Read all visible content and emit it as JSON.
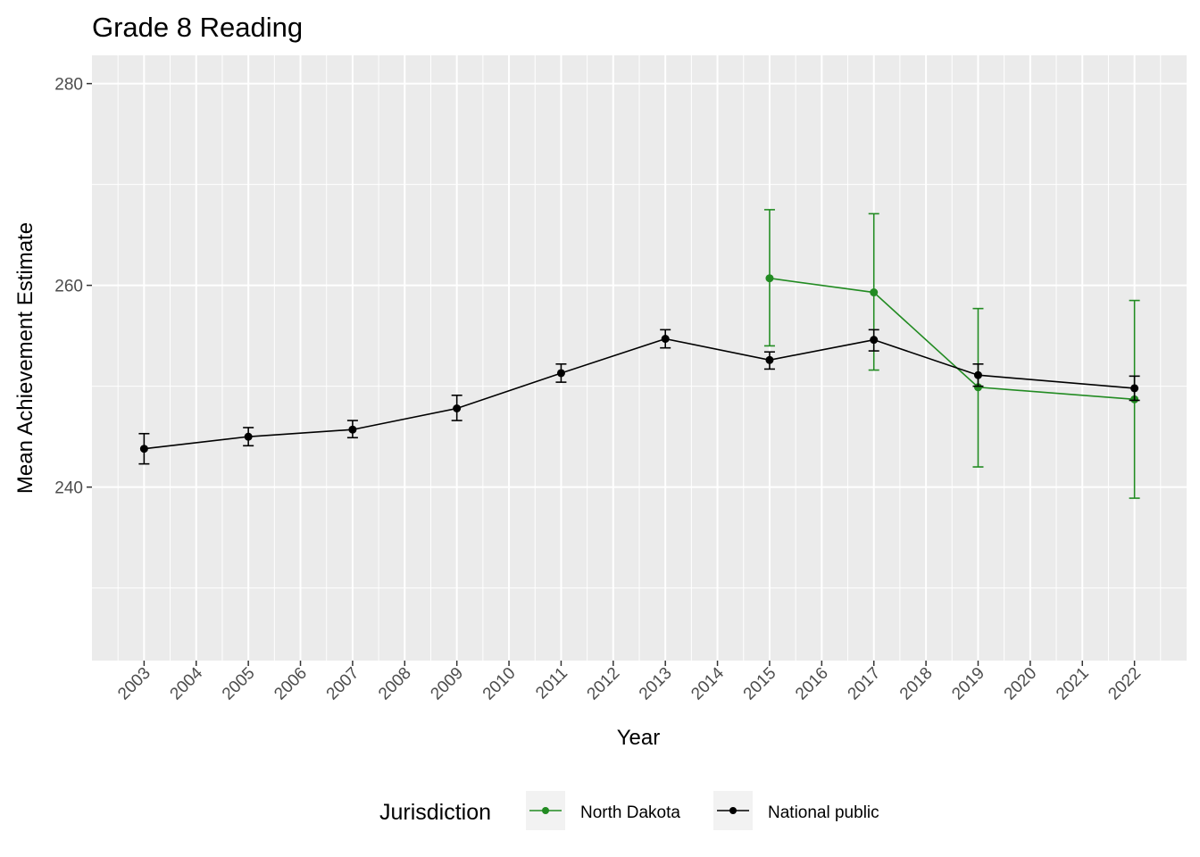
{
  "chart_data": {
    "type": "line",
    "title": "Grade 8 Reading",
    "xlabel": "Year",
    "ylabel": "Mean Achievement Estimate",
    "x_ticks": [
      "2003",
      "2004",
      "2005",
      "2006",
      "2007",
      "2008",
      "2009",
      "2010",
      "2011",
      "2012",
      "2013",
      "2014",
      "2015",
      "2016",
      "2017",
      "2018",
      "2019",
      "2020",
      "2021",
      "2022"
    ],
    "xlim": [
      2002,
      2023
    ],
    "ylim": [
      222.8,
      282.8
    ],
    "y_ticks": [
      240,
      260,
      280
    ],
    "grid": true,
    "error_bars": true,
    "legend": {
      "title": "Jurisdiction",
      "position": "bottom"
    },
    "series": [
      {
        "name": "North Dakota",
        "color": "#228B22",
        "points": [
          {
            "x": 2015,
            "y": 260.7,
            "lo": 254.0,
            "hi": 267.5
          },
          {
            "x": 2017,
            "y": 259.3,
            "lo": 251.6,
            "hi": 267.1
          },
          {
            "x": 2019,
            "y": 249.9,
            "lo": 242.0,
            "hi": 257.7
          },
          {
            "x": 2022,
            "y": 248.7,
            "lo": 238.9,
            "hi": 258.5
          }
        ]
      },
      {
        "name": "National public",
        "color": "#000000",
        "points": [
          {
            "x": 2003,
            "y": 243.8,
            "lo": 242.3,
            "hi": 245.3
          },
          {
            "x": 2005,
            "y": 245.0,
            "lo": 244.1,
            "hi": 245.9
          },
          {
            "x": 2007,
            "y": 245.7,
            "lo": 244.9,
            "hi": 246.6
          },
          {
            "x": 2009,
            "y": 247.8,
            "lo": 246.6,
            "hi": 249.1
          },
          {
            "x": 2011,
            "y": 251.3,
            "lo": 250.4,
            "hi": 252.2
          },
          {
            "x": 2013,
            "y": 254.7,
            "lo": 253.8,
            "hi": 255.6
          },
          {
            "x": 2015,
            "y": 252.6,
            "lo": 251.7,
            "hi": 253.4
          },
          {
            "x": 2017,
            "y": 254.6,
            "lo": 253.5,
            "hi": 255.6
          },
          {
            "x": 2019,
            "y": 251.1,
            "lo": 250.0,
            "hi": 252.2
          },
          {
            "x": 2022,
            "y": 249.8,
            "lo": 248.6,
            "hi": 251.0
          }
        ]
      }
    ]
  }
}
